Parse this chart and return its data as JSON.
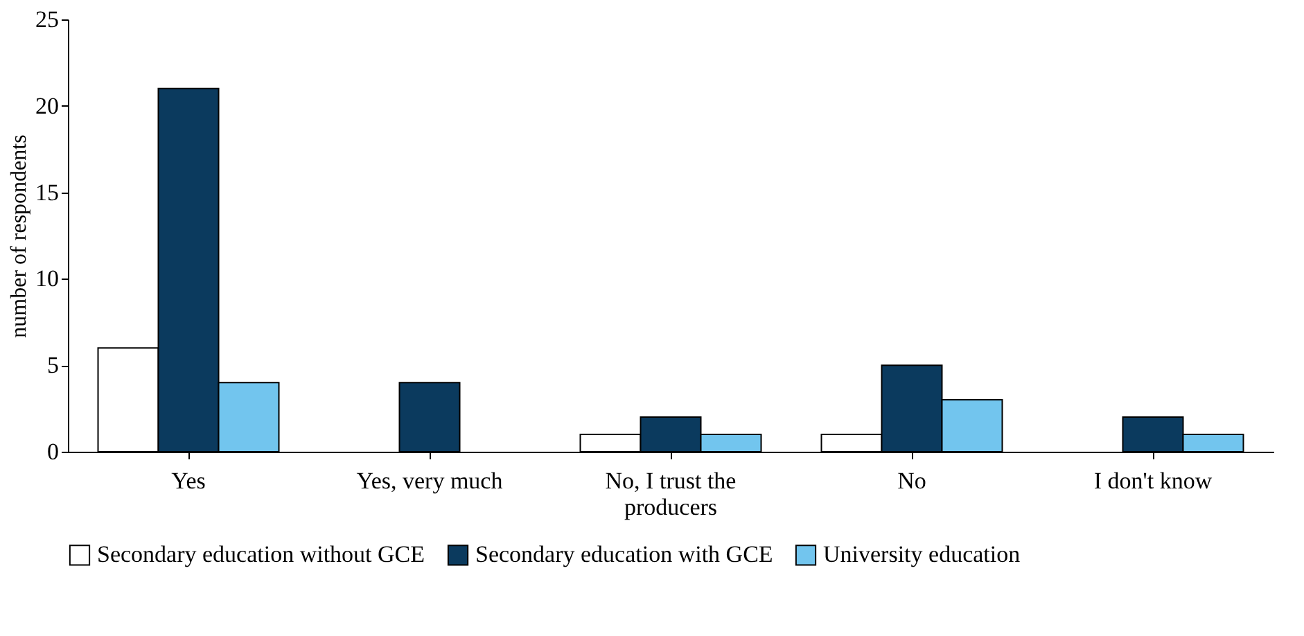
{
  "chart_data": {
    "type": "bar",
    "ylabel": "number of respondents",
    "categories": [
      "Yes",
      "Yes, very much",
      "No, I trust the producers",
      "No",
      "I don't know"
    ],
    "series": [
      {
        "name": "Secondary education without GCE",
        "color": "#ffffff",
        "values": [
          6,
          null,
          1,
          1,
          null
        ]
      },
      {
        "name": "Secondary education with GCE",
        "color": "#0b3a5e",
        "values": [
          21,
          4,
          2,
          5,
          2
        ]
      },
      {
        "name": "University education",
        "color": "#72c5ee",
        "values": [
          4,
          null,
          1,
          3,
          1
        ]
      }
    ],
    "ylim": [
      0,
      25
    ],
    "yticks": [
      0,
      5,
      10,
      15,
      20,
      25
    ],
    "grid": false,
    "legend": "bottom"
  }
}
